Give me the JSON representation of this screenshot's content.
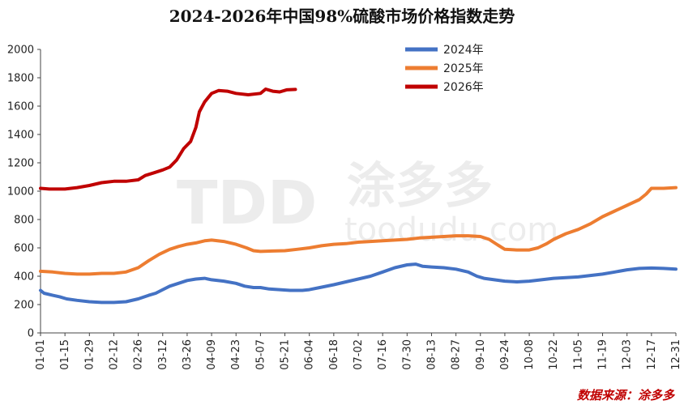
{
  "chart_data": {
    "type": "line",
    "title": "2024-2026年中国98%硫酸市场价格指数走势",
    "xlabel": "",
    "ylabel": "",
    "ylim": [
      0,
      2000
    ],
    "yticks": [
      0,
      200,
      400,
      600,
      800,
      1000,
      1200,
      1400,
      1600,
      1800,
      2000
    ],
    "xticks": [
      "01-01",
      "01-15",
      "01-29",
      "02-12",
      "02-26",
      "03-12",
      "03-26",
      "04-09",
      "04-23",
      "05-07",
      "05-21",
      "06-04",
      "06-18",
      "07-02",
      "07-16",
      "07-30",
      "08-13",
      "08-27",
      "09-10",
      "09-24",
      "10-08",
      "10-22",
      "11-05",
      "11-19",
      "12-03",
      "12-17",
      "12-31"
    ],
    "grid": false,
    "legend_position": "top-right",
    "source": "数据来源：涂多多",
    "series": [
      {
        "name": "2024年",
        "color": "#4472c4",
        "points": [
          [
            "01-01",
            300
          ],
          [
            "01-03",
            280
          ],
          [
            "01-08",
            265
          ],
          [
            "01-12",
            255
          ],
          [
            "01-16",
            240
          ],
          [
            "01-22",
            230
          ],
          [
            "01-29",
            220
          ],
          [
            "02-05",
            215
          ],
          [
            "02-12",
            215
          ],
          [
            "02-19",
            220
          ],
          [
            "02-26",
            240
          ],
          [
            "03-04",
            265
          ],
          [
            "03-08",
            280
          ],
          [
            "03-12",
            305
          ],
          [
            "03-16",
            330
          ],
          [
            "03-21",
            350
          ],
          [
            "03-26",
            370
          ],
          [
            "03-31",
            380
          ],
          [
            "04-05",
            385
          ],
          [
            "04-09",
            375
          ],
          [
            "04-16",
            365
          ],
          [
            "04-23",
            350
          ],
          [
            "04-28",
            330
          ],
          [
            "05-03",
            320
          ],
          [
            "05-07",
            320
          ],
          [
            "05-12",
            310
          ],
          [
            "05-18",
            305
          ],
          [
            "05-24",
            300
          ],
          [
            "05-31",
            300
          ],
          [
            "06-04",
            305
          ],
          [
            "06-10",
            320
          ],
          [
            "06-18",
            340
          ],
          [
            "06-25",
            360
          ],
          [
            "07-02",
            380
          ],
          [
            "07-09",
            400
          ],
          [
            "07-16",
            430
          ],
          [
            "07-23",
            460
          ],
          [
            "07-30",
            480
          ],
          [
            "08-04",
            485
          ],
          [
            "08-08",
            470
          ],
          [
            "08-13",
            465
          ],
          [
            "08-20",
            460
          ],
          [
            "08-27",
            450
          ],
          [
            "09-03",
            430
          ],
          [
            "09-08",
            400
          ],
          [
            "09-12",
            385
          ],
          [
            "09-18",
            375
          ],
          [
            "09-24",
            365
          ],
          [
            "10-01",
            360
          ],
          [
            "10-08",
            365
          ],
          [
            "10-15",
            375
          ],
          [
            "10-22",
            385
          ],
          [
            "10-29",
            390
          ],
          [
            "11-05",
            395
          ],
          [
            "11-12",
            405
          ],
          [
            "11-19",
            415
          ],
          [
            "11-26",
            430
          ],
          [
            "12-03",
            445
          ],
          [
            "12-10",
            455
          ],
          [
            "12-17",
            458
          ],
          [
            "12-24",
            455
          ],
          [
            "12-31",
            450
          ]
        ]
      },
      {
        "name": "2025年",
        "color": "#ed7d31",
        "points": [
          [
            "01-01",
            435
          ],
          [
            "01-08",
            430
          ],
          [
            "01-15",
            420
          ],
          [
            "01-22",
            415
          ],
          [
            "01-29",
            415
          ],
          [
            "02-05",
            420
          ],
          [
            "02-12",
            420
          ],
          [
            "02-19",
            430
          ],
          [
            "02-26",
            460
          ],
          [
            "03-04",
            510
          ],
          [
            "03-10",
            555
          ],
          [
            "03-16",
            590
          ],
          [
            "03-21",
            610
          ],
          [
            "03-26",
            625
          ],
          [
            "03-31",
            635
          ],
          [
            "04-05",
            650
          ],
          [
            "04-09",
            655
          ],
          [
            "04-16",
            645
          ],
          [
            "04-23",
            625
          ],
          [
            "04-29",
            600
          ],
          [
            "05-03",
            580
          ],
          [
            "05-07",
            575
          ],
          [
            "05-14",
            578
          ],
          [
            "05-21",
            580
          ],
          [
            "05-28",
            590
          ],
          [
            "06-04",
            600
          ],
          [
            "06-11",
            615
          ],
          [
            "06-18",
            625
          ],
          [
            "06-25",
            630
          ],
          [
            "07-02",
            640
          ],
          [
            "07-09",
            645
          ],
          [
            "07-16",
            650
          ],
          [
            "07-23",
            655
          ],
          [
            "07-30",
            660
          ],
          [
            "08-06",
            670
          ],
          [
            "08-13",
            675
          ],
          [
            "08-20",
            680
          ],
          [
            "08-27",
            685
          ],
          [
            "09-03",
            685
          ],
          [
            "09-10",
            680
          ],
          [
            "09-15",
            660
          ],
          [
            "09-20",
            620
          ],
          [
            "09-24",
            590
          ],
          [
            "10-01",
            585
          ],
          [
            "10-08",
            585
          ],
          [
            "10-13",
            600
          ],
          [
            "10-18",
            630
          ],
          [
            "10-22",
            660
          ],
          [
            "10-29",
            700
          ],
          [
            "11-05",
            730
          ],
          [
            "11-12",
            770
          ],
          [
            "11-19",
            820
          ],
          [
            "11-26",
            860
          ],
          [
            "12-03",
            900
          ],
          [
            "12-10",
            940
          ],
          [
            "12-14",
            980
          ],
          [
            "12-17",
            1020
          ],
          [
            "12-24",
            1020
          ],
          [
            "12-31",
            1025
          ]
        ]
      },
      {
        "name": "2026年",
        "color": "#c00000",
        "points": [
          [
            "01-01",
            1020
          ],
          [
            "01-06",
            1015
          ],
          [
            "01-15",
            1015
          ],
          [
            "01-22",
            1025
          ],
          [
            "01-29",
            1040
          ],
          [
            "02-05",
            1060
          ],
          [
            "02-12",
            1070
          ],
          [
            "02-19",
            1070
          ],
          [
            "02-26",
            1080
          ],
          [
            "03-02",
            1110
          ],
          [
            "03-07",
            1130
          ],
          [
            "03-12",
            1150
          ],
          [
            "03-16",
            1170
          ],
          [
            "03-20",
            1220
          ],
          [
            "03-24",
            1300
          ],
          [
            "03-28",
            1350
          ],
          [
            "03-31",
            1450
          ],
          [
            "04-02",
            1560
          ],
          [
            "04-05",
            1630
          ],
          [
            "04-09",
            1690
          ],
          [
            "04-13",
            1710
          ],
          [
            "04-18",
            1705
          ],
          [
            "04-23",
            1690
          ],
          [
            "04-30",
            1680
          ],
          [
            "05-07",
            1690
          ],
          [
            "05-10",
            1720
          ],
          [
            "05-14",
            1705
          ],
          [
            "05-18",
            1700
          ],
          [
            "05-22",
            1715
          ],
          [
            "05-27",
            1718
          ]
        ]
      }
    ]
  },
  "watermark": {
    "logo": "TDD",
    "brand": "涂多多",
    "site": "toodudu.com"
  }
}
